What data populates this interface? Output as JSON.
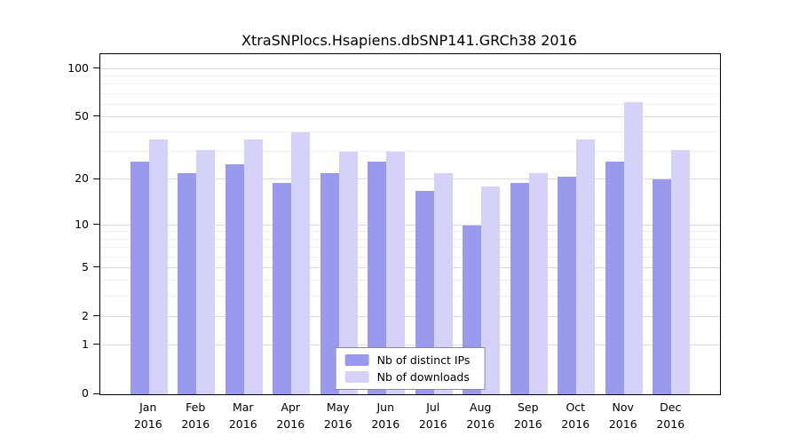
{
  "chart_data": {
    "type": "bar",
    "title": "XtraSNPlocs.Hsapiens.dbSNP141.GRCh38 2016",
    "categories": [
      "Jan",
      "Feb",
      "Mar",
      "Apr",
      "May",
      "Jun",
      "Jul",
      "Aug",
      "Sep",
      "Oct",
      "Nov",
      "Dec"
    ],
    "x_sublabel": "2016",
    "series": [
      {
        "name": "Nb of distinct IPs",
        "color": "#9999ee",
        "values": [
          26,
          22,
          25,
          19,
          22,
          26,
          17,
          10,
          19,
          21,
          26,
          20
        ]
      },
      {
        "name": "Nb of downloads",
        "color": "#d4d2f8",
        "values": [
          36,
          31,
          36,
          40,
          30,
          30,
          22,
          18,
          22,
          36,
          62,
          31
        ]
      }
    ],
    "y_ticks": [
      100,
      50,
      20,
      10,
      5,
      2,
      1,
      0
    ],
    "minor_gridlines": [
      3,
      4,
      6,
      7,
      8,
      9,
      30,
      40,
      60,
      70,
      80,
      90
    ],
    "y_scale": "log10(1+v)",
    "ylim": [
      0,
      100
    ],
    "grid": true,
    "legend_position": "bottom-center",
    "legend_labels": [
      "Nb of distinct IPs",
      "Nb of downloads"
    ]
  }
}
